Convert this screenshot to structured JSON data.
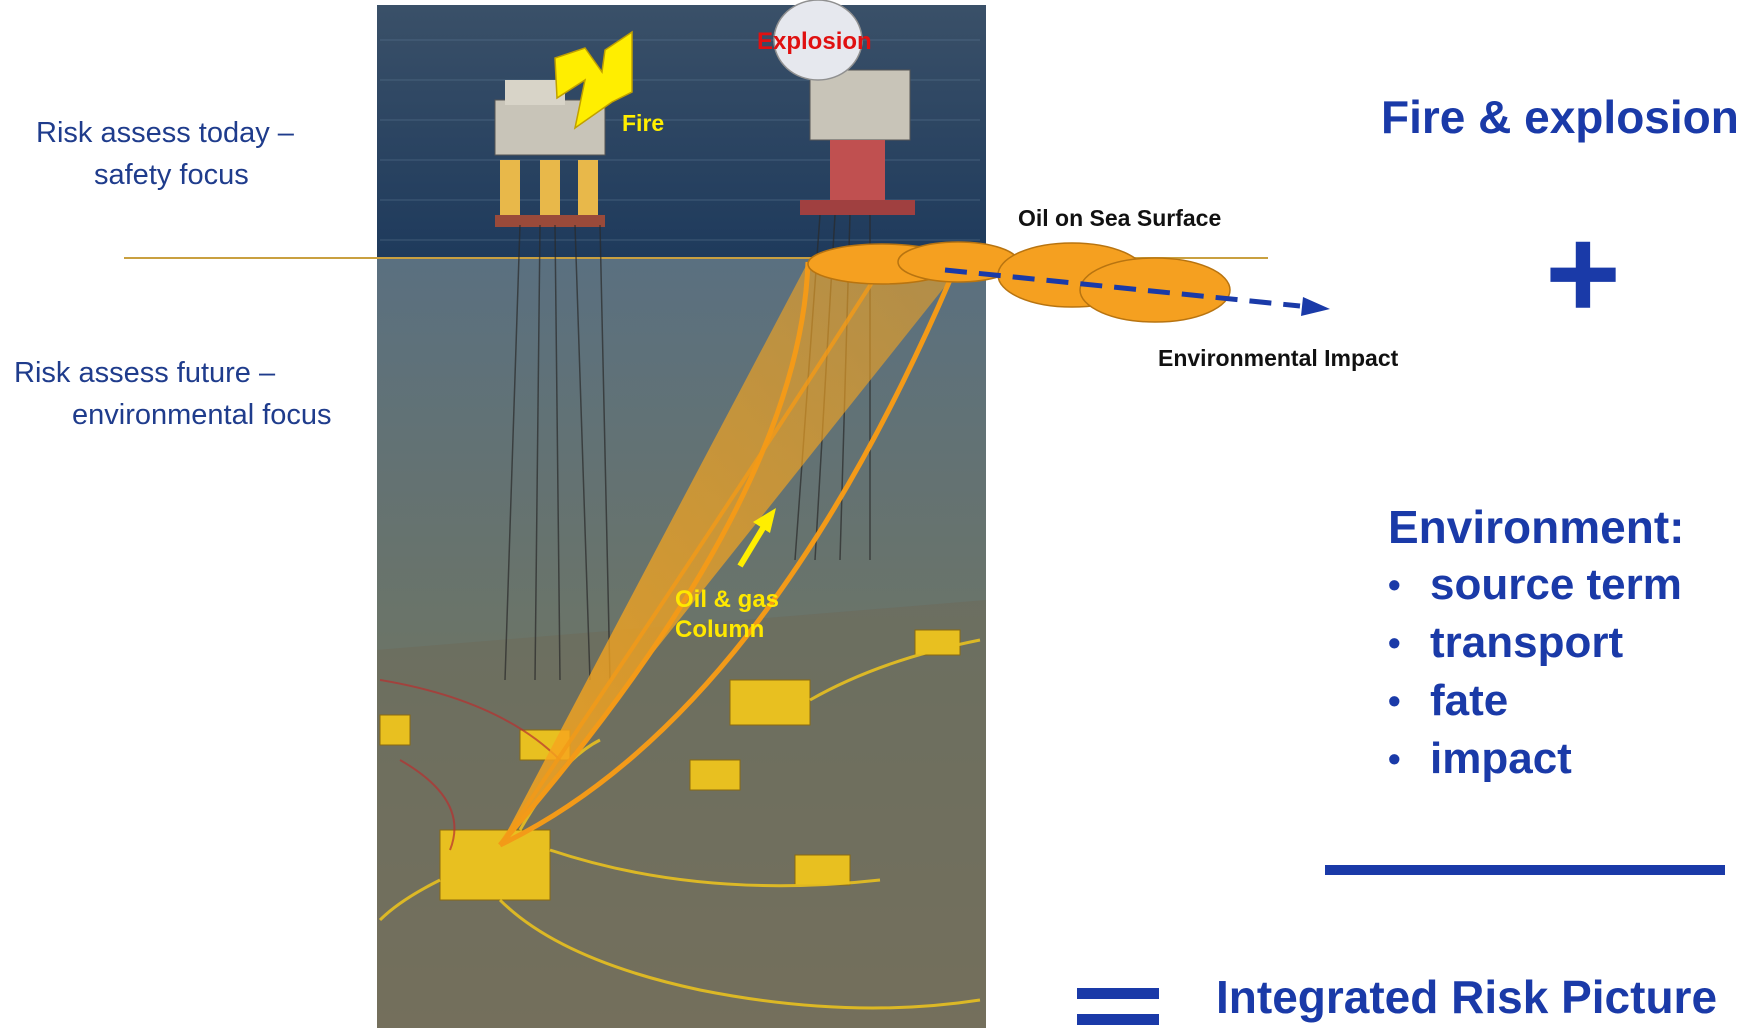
{
  "left_notes": {
    "today": [
      "Risk assess today –",
      "safety focus"
    ],
    "future": [
      "Risk assess future –",
      "environmental focus"
    ]
  },
  "image_labels": {
    "fire": "Fire",
    "explosion": "Explosion",
    "oil_surface": "Oil on Sea Surface",
    "env_impact": "Environmental Impact",
    "column": [
      "Oil & gas",
      "Column"
    ]
  },
  "right_panel": {
    "heading1": "Fire & explosion",
    "plus": "+",
    "env_heading": "Environment:",
    "env_items": [
      "source term",
      "transport",
      "fate",
      "impact"
    ],
    "result": "Integrated Risk Picture"
  },
  "colors": {
    "accent_blue": "#1a3aa8",
    "note_blue": "#1f3c8c",
    "plume_orange": "#f5a020",
    "arrow_yellow": "#ffee00",
    "explosion_red": "#e01010"
  }
}
